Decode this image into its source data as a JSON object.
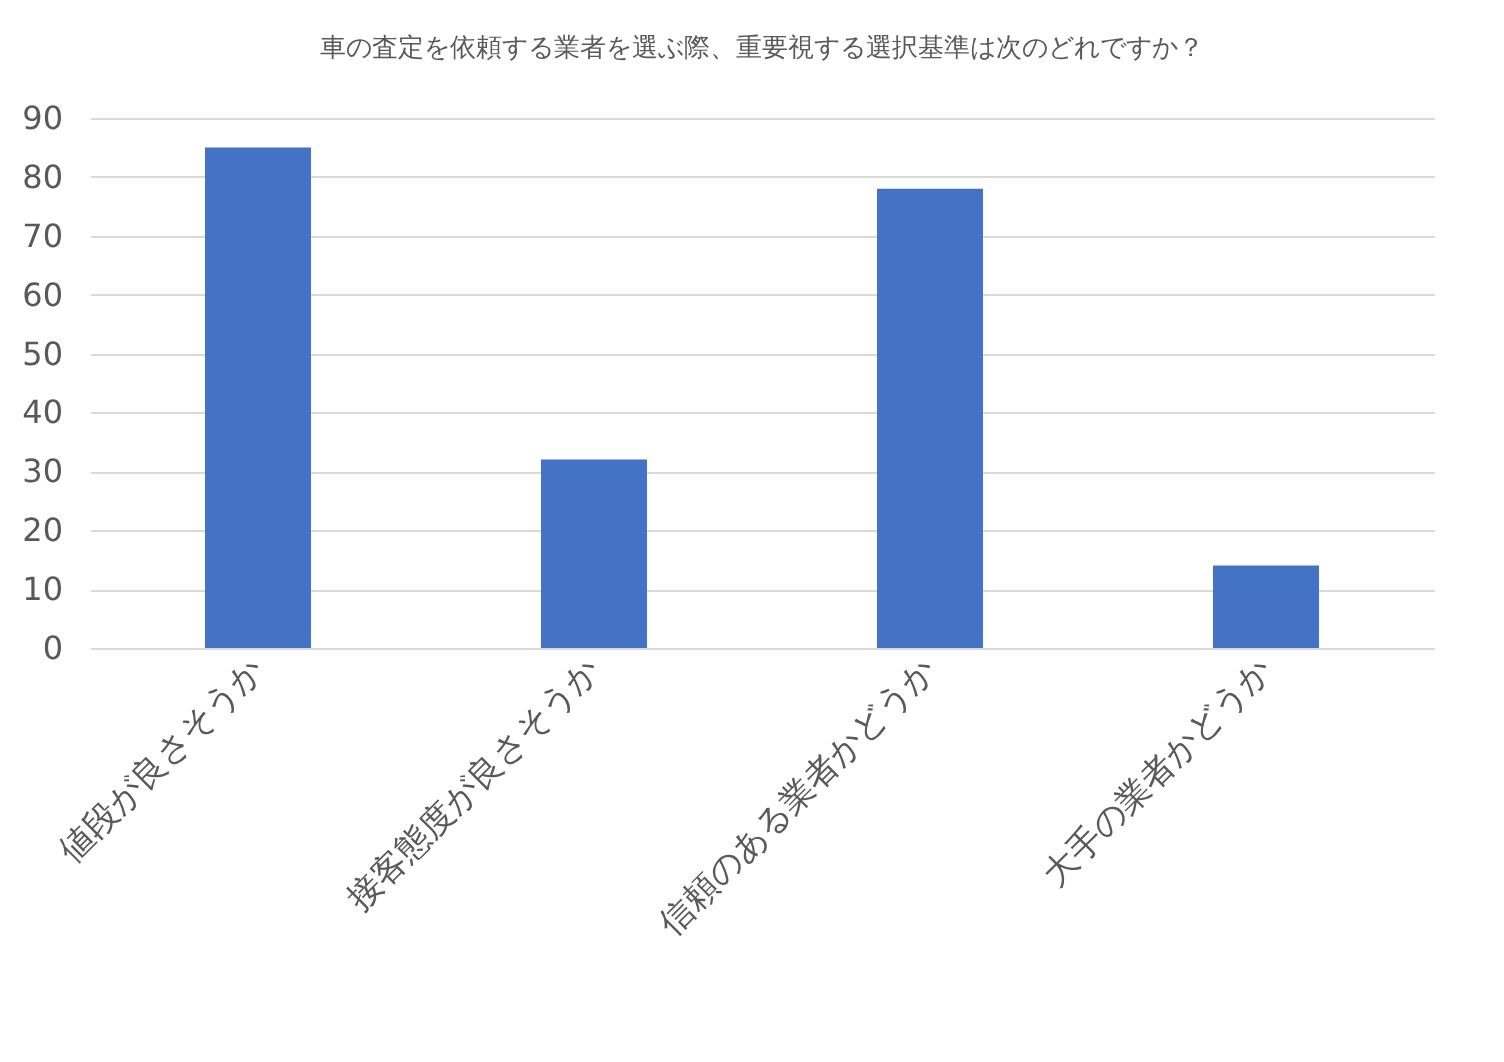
{
  "chart_data": {
    "type": "bar",
    "title": "車の査定を依頼する業者を選ぶ際、重要視する選択基準は次のどれですか？",
    "categories": [
      "値段が良さそうか",
      "接客態度が良さそうか",
      "信頼のある業者かどうか",
      "大手の業者かどうか"
    ],
    "values": [
      85,
      32,
      78,
      14
    ],
    "color": "#4472c4",
    "ylim": [
      0,
      90
    ],
    "yticks": [
      0,
      10,
      20,
      30,
      40,
      50,
      60,
      70,
      80,
      90
    ],
    "grid": "y"
  }
}
